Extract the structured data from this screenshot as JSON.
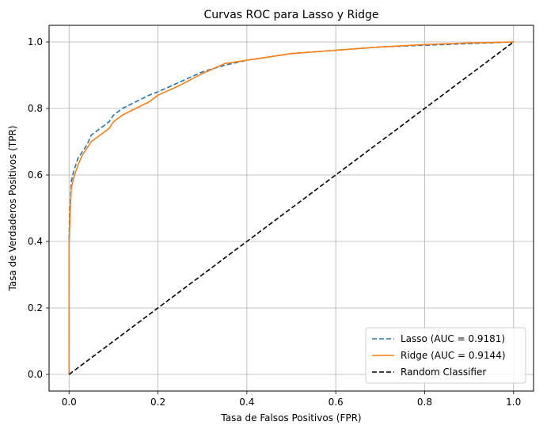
{
  "chart_data": {
    "type": "line",
    "title": "Curvas ROC para Lasso y Ridge",
    "xlabel": "Tasa de Falsos Positivos (FPR)",
    "ylabel": "Tasa de Verdaderos Positivos (TPR)",
    "xlim": [
      -0.045,
      1.045
    ],
    "ylim": [
      -0.05,
      1.05
    ],
    "xticks": [
      0.0,
      0.2,
      0.4,
      0.6,
      0.8,
      1.0
    ],
    "xtick_labels": [
      "0.0",
      "0.2",
      "0.4",
      "0.6",
      "0.8",
      "1.0"
    ],
    "yticks": [
      0.0,
      0.2,
      0.4,
      0.6,
      0.8,
      1.0
    ],
    "ytick_labels": [
      "0.0",
      "0.2",
      "0.4",
      "0.6",
      "0.8",
      "1.0"
    ],
    "grid": true,
    "legend_position": "lower-right",
    "series": [
      {
        "name": "Lasso (AUC = 0.9181)",
        "color": "#1f77b4",
        "style": "dashed",
        "x": [
          0.0,
          0.0,
          0.002,
          0.005,
          0.01,
          0.015,
          0.02,
          0.03,
          0.04,
          0.05,
          0.07,
          0.09,
          0.1,
          0.12,
          0.15,
          0.18,
          0.2,
          0.25,
          0.3,
          0.35,
          0.4,
          0.45,
          0.5,
          0.6,
          0.7,
          0.8,
          0.9,
          1.0
        ],
        "y": [
          0.0,
          0.42,
          0.5,
          0.58,
          0.61,
          0.63,
          0.65,
          0.67,
          0.69,
          0.72,
          0.74,
          0.76,
          0.78,
          0.8,
          0.82,
          0.84,
          0.85,
          0.88,
          0.91,
          0.93,
          0.945,
          0.955,
          0.965,
          0.975,
          0.985,
          0.99,
          0.995,
          1.0
        ]
      },
      {
        "name": "Ridge (AUC = 0.9144)",
        "color": "#ff7f0e",
        "style": "solid",
        "x": [
          0.0,
          0.0,
          0.002,
          0.005,
          0.01,
          0.015,
          0.02,
          0.03,
          0.04,
          0.05,
          0.07,
          0.09,
          0.1,
          0.12,
          0.15,
          0.18,
          0.2,
          0.25,
          0.3,
          0.35,
          0.4,
          0.45,
          0.5,
          0.6,
          0.7,
          0.8,
          0.9,
          1.0
        ],
        "y": [
          0.0,
          0.39,
          0.47,
          0.56,
          0.59,
          0.61,
          0.63,
          0.66,
          0.68,
          0.7,
          0.72,
          0.74,
          0.76,
          0.78,
          0.8,
          0.82,
          0.84,
          0.87,
          0.905,
          0.935,
          0.945,
          0.955,
          0.965,
          0.975,
          0.985,
          0.992,
          0.997,
          1.0
        ]
      },
      {
        "name": "Random Classifier",
        "color": "#000000",
        "style": "dashed",
        "x": [
          0.0,
          1.0
        ],
        "y": [
          0.0,
          1.0
        ]
      }
    ]
  }
}
